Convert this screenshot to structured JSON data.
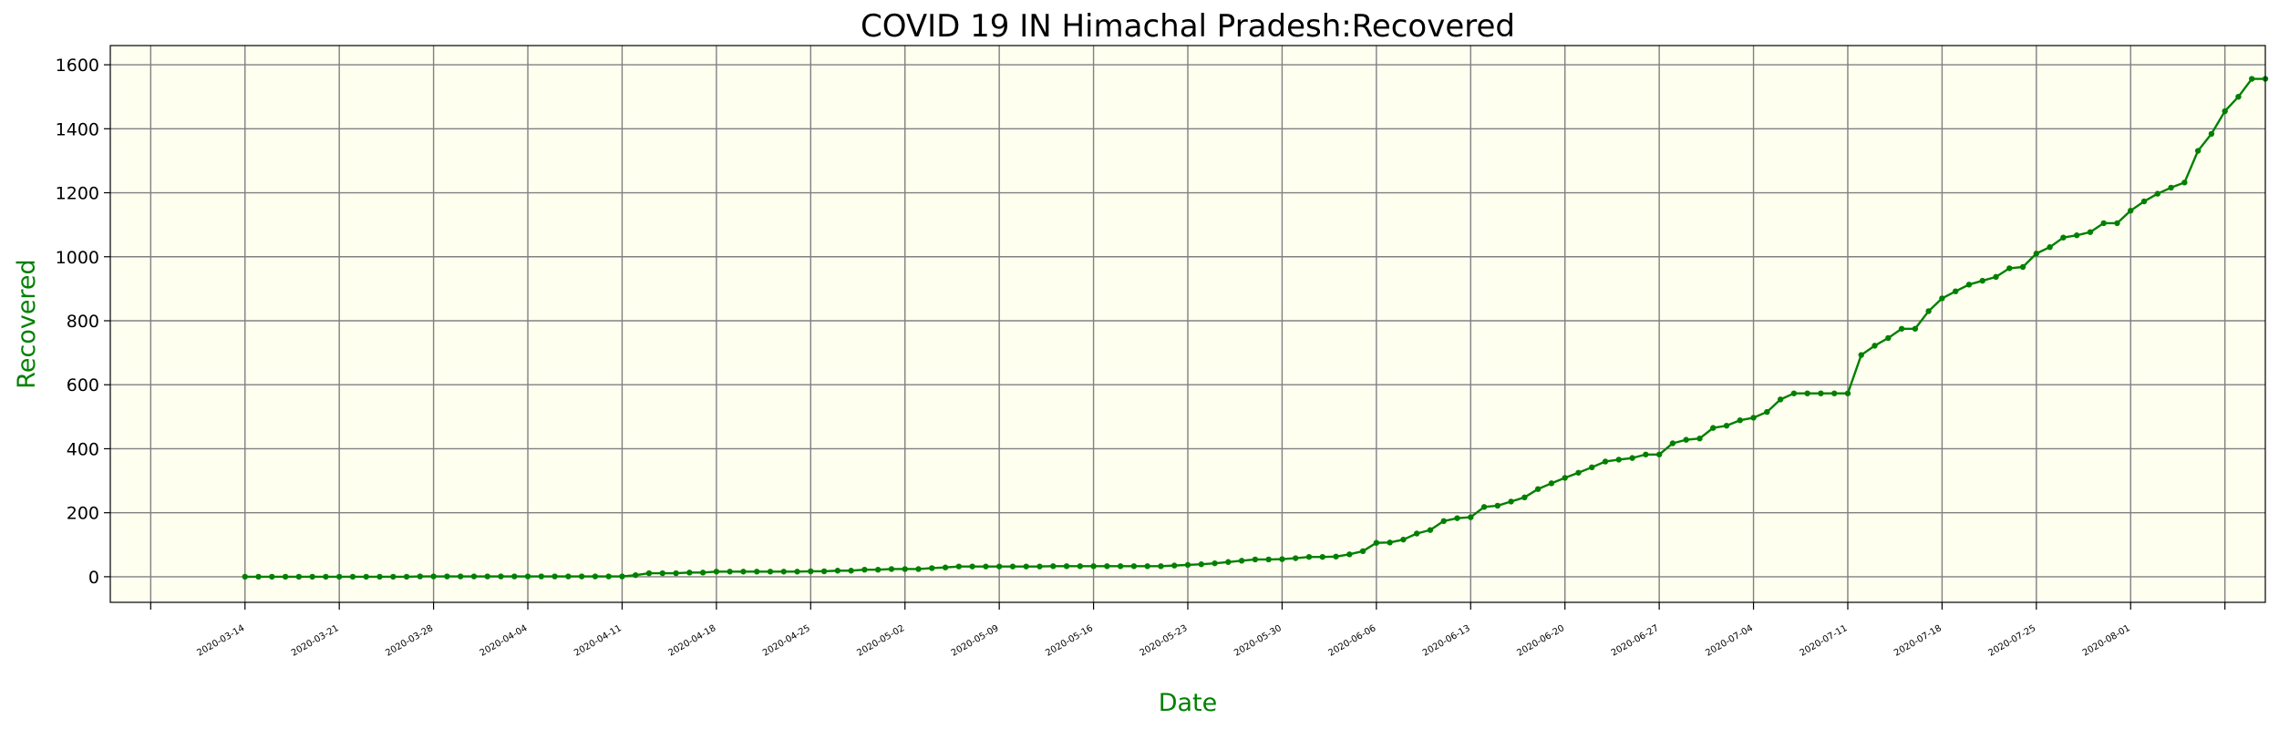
{
  "chart_data": {
    "type": "line",
    "title": "COVID 19 IN Himachal Pradesh:Recovered",
    "xlabel": "Date",
    "ylabel": "Recovered",
    "x_start": "2020-03-14",
    "x_tick_labels": [
      "2020-03-14",
      "2020-03-21",
      "2020-03-28",
      "2020-04-04",
      "2020-04-11",
      "2020-04-18",
      "2020-04-25",
      "2020-05-02",
      "2020-05-09",
      "2020-05-16",
      "2020-05-23",
      "2020-05-30",
      "2020-06-06",
      "2020-06-13",
      "2020-06-20",
      "2020-06-27",
      "2020-07-04",
      "2020-07-11",
      "2020-07-18",
      "2020-07-25",
      "2020-08-01"
    ],
    "y_ticks": [
      0,
      200,
      400,
      600,
      800,
      1000,
      1200,
      1400,
      1600
    ],
    "ylim": [
      -80,
      1660
    ],
    "xlim": [
      "2020-03-04",
      "2020-08-11"
    ],
    "grid": true,
    "series": [
      {
        "values": [
          0,
          0,
          0,
          0,
          0,
          0,
          0,
          0,
          0,
          0,
          0,
          0,
          0,
          1,
          1,
          1,
          1,
          1,
          1,
          1,
          1,
          1,
          1,
          1,
          1,
          1,
          1,
          1,
          1,
          5,
          11,
          11,
          11,
          13,
          13,
          16,
          16,
          16,
          16,
          16,
          16,
          16,
          17,
          17,
          19,
          19,
          22,
          22,
          24,
          24,
          24,
          27,
          29,
          32,
          32,
          32,
          32,
          32,
          32,
          32,
          33,
          33,
          33,
          33,
          33,
          33,
          33,
          33,
          33,
          35,
          37,
          39,
          42,
          46,
          50,
          54,
          54,
          55,
          58,
          62,
          62,
          63,
          70,
          80,
          106,
          107,
          116,
          135,
          146,
          174,
          183,
          186,
          218,
          222,
          235,
          248,
          274,
          292,
          309,
          325,
          342,
          360,
          366,
          371,
          382,
          382,
          417,
          428,
          432,
          465,
          472,
          489,
          497,
          515,
          554,
          573,
          573,
          573,
          573,
          573,
          693,
          722,
          746,
          775,
          775,
          830,
          870,
          892,
          913,
          925,
          937,
          964,
          968,
          1010,
          1030,
          1060,
          1067,
          1077,
          1105,
          1105,
          1144,
          1173,
          1197,
          1216,
          1232,
          1331,
          1384,
          1455,
          1500,
          1556,
          1556
        ]
      }
    ],
    "colors": {
      "line": "#008000",
      "plot_background": "#fffff0",
      "grid": "#808080",
      "label": "#008000"
    }
  }
}
